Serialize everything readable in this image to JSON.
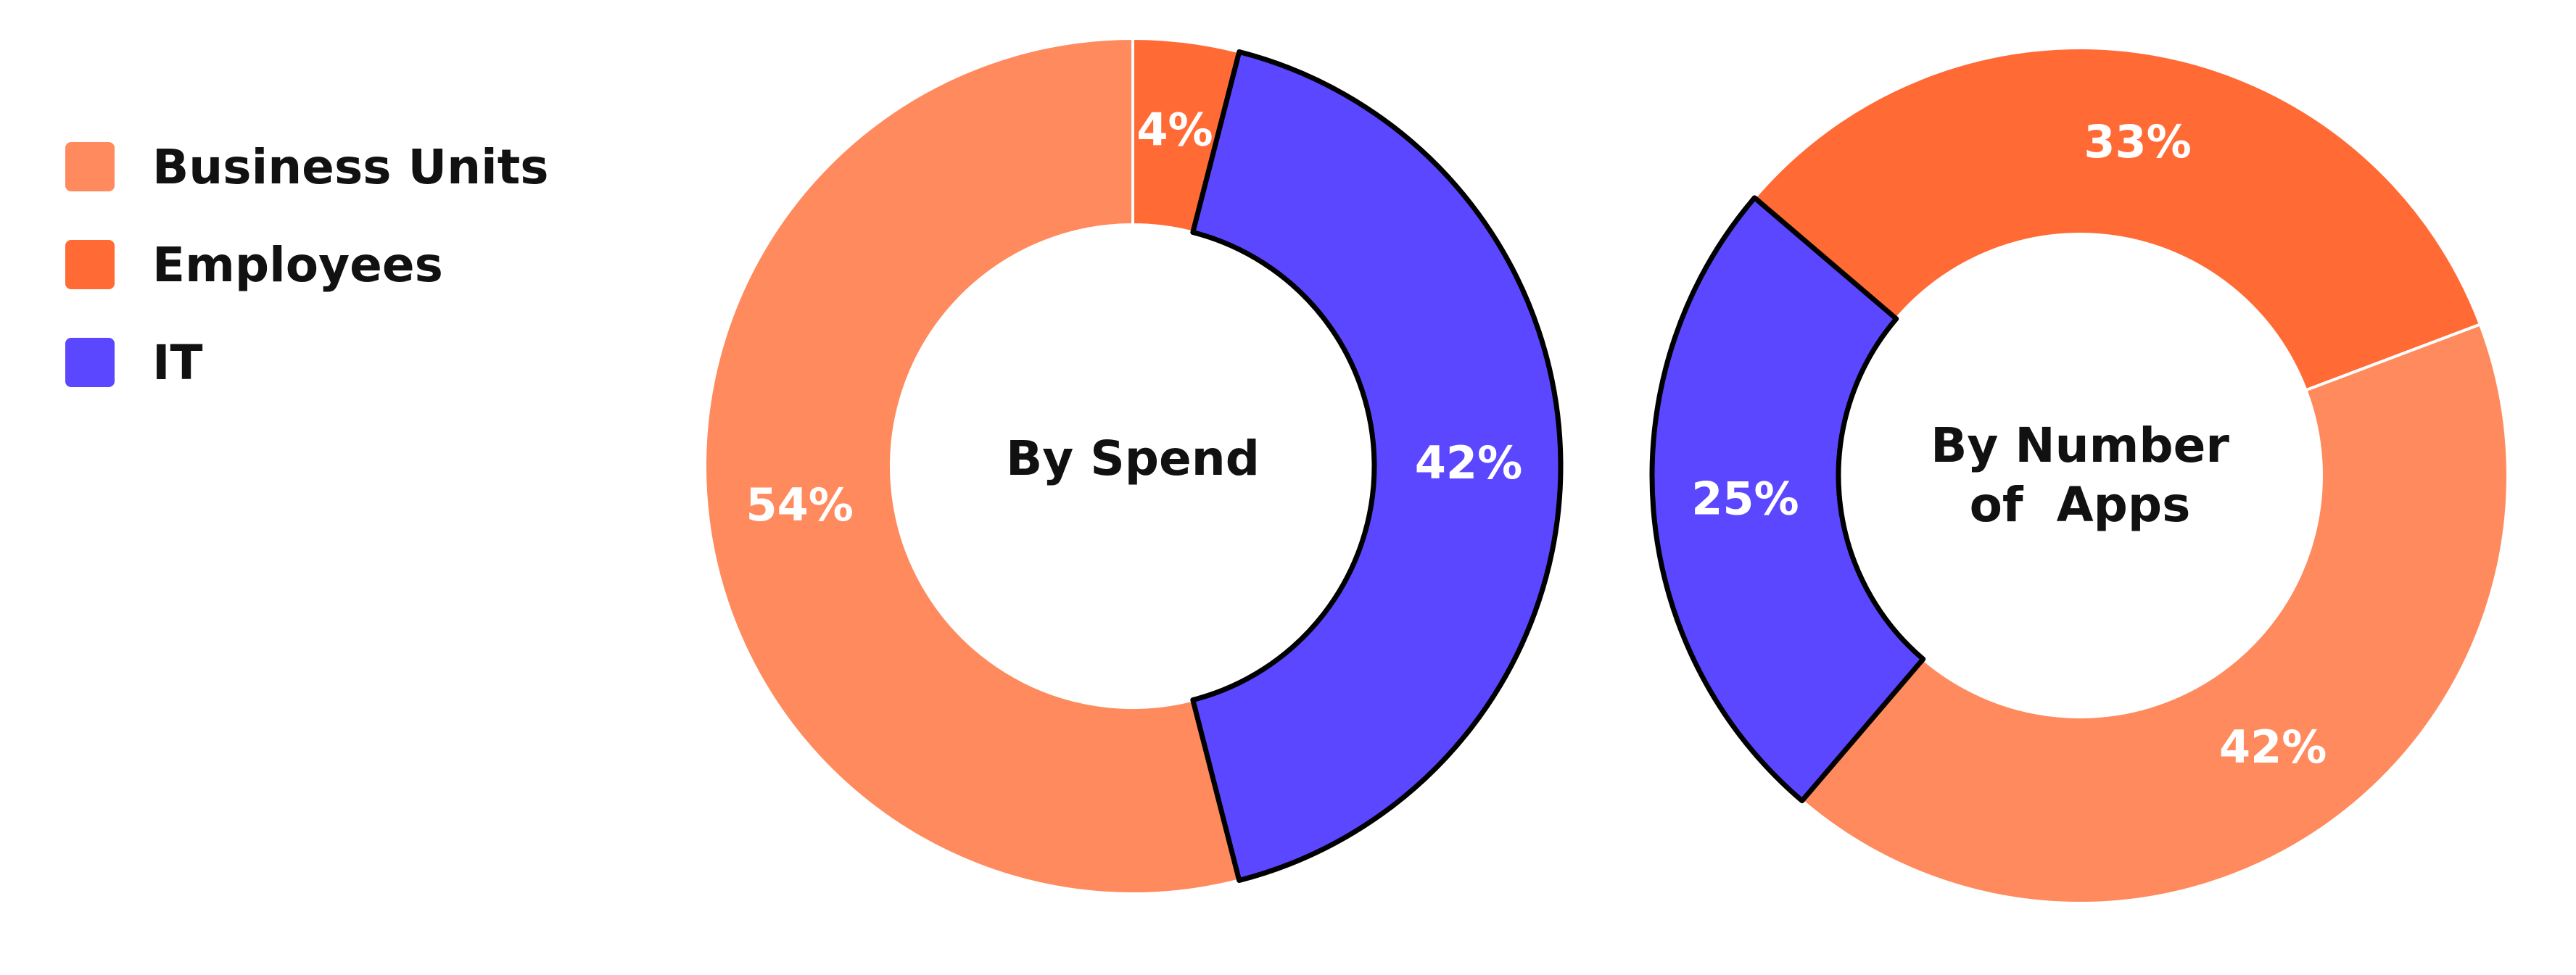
{
  "colors": {
    "business_units": "#FF8A5E",
    "employees": "#FF6A35",
    "it": "#5B47FF",
    "outline": "#000000"
  },
  "legend": [
    {
      "label": "Business Units",
      "color": "#FF8A5E"
    },
    {
      "label": "Employees",
      "color": "#FF6A35"
    },
    {
      "label": "IT",
      "color": "#5B47FF"
    }
  ],
  "chart_data": [
    {
      "type": "pie",
      "title": "By Spend",
      "categories": [
        "Employees",
        "IT",
        "Business Units"
      ],
      "values": [
        4,
        42,
        54
      ],
      "labels": [
        "4%",
        "42%",
        "54%"
      ],
      "highlighted": "IT",
      "legend": "left"
    },
    {
      "type": "pie",
      "title": "By Number of Apps",
      "title_lines": [
        "By Number",
        "of  Apps"
      ],
      "categories": [
        "Employees",
        "Business Units",
        "IT"
      ],
      "values": [
        33,
        42,
        25
      ],
      "labels": [
        "33%",
        "42%",
        "25%"
      ],
      "highlighted": "IT",
      "legend": "left"
    }
  ]
}
